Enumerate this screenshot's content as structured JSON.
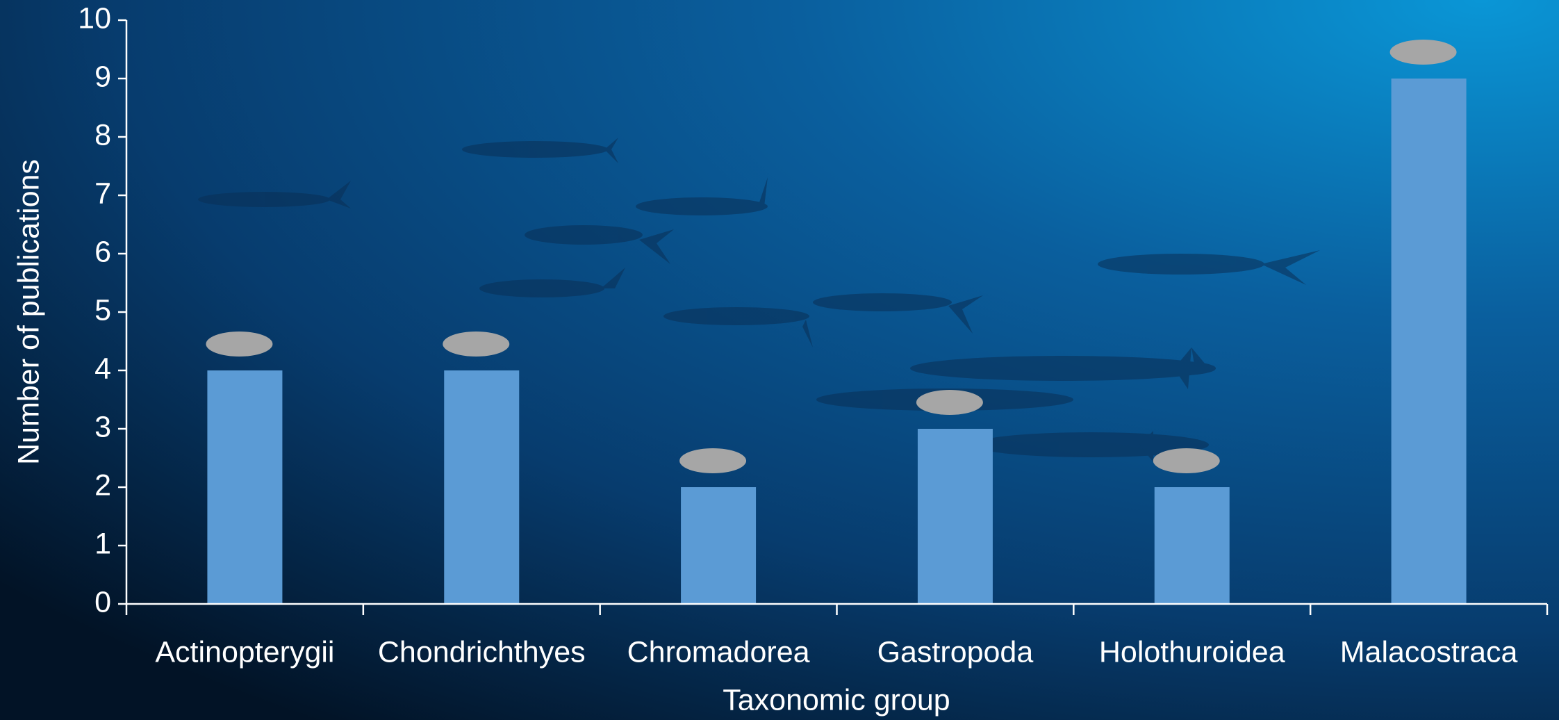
{
  "chart_data": {
    "type": "bar",
    "x_label": "Taxonomic group",
    "y_label": "Number of publications",
    "categories": [
      "Actinopterygii",
      "Chondrichthyes",
      "Chromadorea",
      "Gastropoda",
      "Holothuroidea",
      "Malacostraca"
    ],
    "values": [
      4,
      4,
      2,
      3,
      2,
      9
    ],
    "color": "#5b9bd5",
    "ylim": [
      0,
      10
    ],
    "yticks": [
      0,
      1,
      2,
      3,
      4,
      5,
      6,
      7,
      8,
      9,
      10
    ],
    "grid": false
  }
}
